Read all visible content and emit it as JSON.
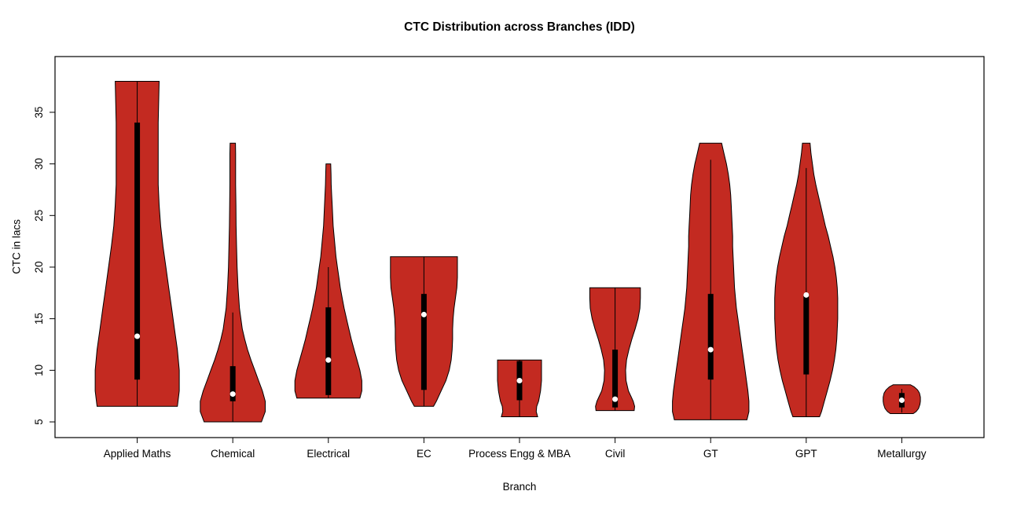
{
  "chart_data": {
    "type": "violin",
    "title": "CTC Distribution across Branches (IDD)",
    "xlabel": "Branch",
    "ylabel": "CTC in lacs",
    "ylim": [
      3.48,
      40.4
    ],
    "yticks": [
      5,
      10,
      15,
      20,
      25,
      30,
      35
    ],
    "grid": false,
    "legend": "none",
    "violin_fill": "#c32a21",
    "outline_color": "#000000",
    "box_color": "#000000",
    "median_color": "#ffffff",
    "categories": [
      "Applied Maths",
      "Chemical",
      "Electrical",
      "EC",
      "Process Engg & MBA",
      "Civil",
      "GT",
      "GPT",
      "Metallurgy"
    ],
    "series": [
      {
        "name": "Applied Maths",
        "min": 6.5,
        "max": 38,
        "q1": 9.1,
        "q3": 34,
        "median": 13.3,
        "whisker_low": 6.5,
        "whisker_high": 38,
        "shape": [
          [
            6.5,
            0.42
          ],
          [
            8,
            0.44
          ],
          [
            10,
            0.44
          ],
          [
            12,
            0.42
          ],
          [
            14,
            0.39
          ],
          [
            16,
            0.36
          ],
          [
            18,
            0.33
          ],
          [
            20,
            0.3
          ],
          [
            22,
            0.27
          ],
          [
            24,
            0.245
          ],
          [
            26,
            0.23
          ],
          [
            28,
            0.22
          ],
          [
            30,
            0.22
          ],
          [
            32,
            0.22
          ],
          [
            34,
            0.22
          ],
          [
            36,
            0.225
          ],
          [
            38,
            0.23
          ]
        ]
      },
      {
        "name": "Chemical",
        "min": 5,
        "max": 32,
        "q1": 7.0,
        "q3": 10.4,
        "median": 7.7,
        "whisker_low": 5,
        "whisker_high": 15.6,
        "shape": [
          [
            5,
            0.3
          ],
          [
            6,
            0.34
          ],
          [
            7,
            0.34
          ],
          [
            8,
            0.31
          ],
          [
            9,
            0.27
          ],
          [
            10,
            0.23
          ],
          [
            11,
            0.19
          ],
          [
            12,
            0.155
          ],
          [
            13,
            0.125
          ],
          [
            14,
            0.1
          ],
          [
            15,
            0.085
          ],
          [
            16,
            0.07
          ],
          [
            18,
            0.055
          ],
          [
            20,
            0.045
          ],
          [
            22,
            0.04
          ],
          [
            24,
            0.035
          ],
          [
            26,
            0.033
          ],
          [
            28,
            0.03
          ],
          [
            30,
            0.03
          ],
          [
            31,
            0.03
          ],
          [
            32,
            0.028
          ]
        ]
      },
      {
        "name": "Electrical",
        "min": 7.3,
        "max": 30,
        "q1": 7.6,
        "q3": 16.1,
        "median": 11,
        "whisker_low": 7.3,
        "whisker_high": 20,
        "shape": [
          [
            7.3,
            0.33
          ],
          [
            8,
            0.35
          ],
          [
            9,
            0.35
          ],
          [
            10,
            0.33
          ],
          [
            11,
            0.3
          ],
          [
            12,
            0.27
          ],
          [
            13,
            0.24
          ],
          [
            14,
            0.215
          ],
          [
            15,
            0.19
          ],
          [
            16,
            0.165
          ],
          [
            17,
            0.145
          ],
          [
            18,
            0.125
          ],
          [
            19,
            0.11
          ],
          [
            20,
            0.095
          ],
          [
            21,
            0.08
          ],
          [
            22,
            0.07
          ],
          [
            23,
            0.06
          ],
          [
            24,
            0.05
          ],
          [
            25,
            0.045
          ],
          [
            26,
            0.04
          ],
          [
            27,
            0.035
          ],
          [
            28,
            0.03
          ],
          [
            29,
            0.028
          ],
          [
            30,
            0.025
          ]
        ]
      },
      {
        "name": "EC",
        "min": 6.5,
        "max": 21,
        "q1": 8.1,
        "q3": 17.4,
        "median": 15.4,
        "whisker_low": 6.5,
        "whisker_high": 21,
        "shape": [
          [
            6.5,
            0.1
          ],
          [
            7,
            0.13
          ],
          [
            8,
            0.18
          ],
          [
            9,
            0.23
          ],
          [
            10,
            0.265
          ],
          [
            11,
            0.285
          ],
          [
            12,
            0.295
          ],
          [
            13,
            0.3
          ],
          [
            14,
            0.3
          ],
          [
            15,
            0.305
          ],
          [
            16,
            0.315
          ],
          [
            17,
            0.33
          ],
          [
            18,
            0.345
          ],
          [
            19,
            0.35
          ],
          [
            20,
            0.35
          ],
          [
            21,
            0.35
          ]
        ]
      },
      {
        "name": "Process Engg & MBA",
        "min": 5.5,
        "max": 11,
        "q1": 7.1,
        "q3": 10.9,
        "median": 9,
        "whisker_low": 5.5,
        "whisker_high": 11,
        "shape": [
          [
            5.5,
            0.19
          ],
          [
            6,
            0.175
          ],
          [
            6.5,
            0.18
          ],
          [
            7,
            0.2
          ],
          [
            8,
            0.22
          ],
          [
            9,
            0.23
          ],
          [
            10,
            0.23
          ],
          [
            11,
            0.23
          ]
        ]
      },
      {
        "name": "Civil",
        "min": 6.1,
        "max": 18,
        "q1": 6.4,
        "q3": 12,
        "median": 7.2,
        "whisker_low": 6.1,
        "whisker_high": 18,
        "shape": [
          [
            6.1,
            0.2
          ],
          [
            6.5,
            0.205
          ],
          [
            7,
            0.19
          ],
          [
            7.5,
            0.165
          ],
          [
            8,
            0.14
          ],
          [
            9,
            0.115
          ],
          [
            10,
            0.11
          ],
          [
            11,
            0.12
          ],
          [
            12,
            0.145
          ],
          [
            13,
            0.175
          ],
          [
            14,
            0.21
          ],
          [
            15,
            0.24
          ],
          [
            16,
            0.26
          ],
          [
            17,
            0.265
          ],
          [
            18,
            0.265
          ]
        ]
      },
      {
        "name": "GT",
        "min": 5.2,
        "max": 32,
        "q1": 9.1,
        "q3": 17.4,
        "median": 12,
        "whisker_low": 5.2,
        "whisker_high": 30.4,
        "shape": [
          [
            5.2,
            0.38
          ],
          [
            6,
            0.4
          ],
          [
            7,
            0.4
          ],
          [
            8,
            0.39
          ],
          [
            9,
            0.375
          ],
          [
            10,
            0.36
          ],
          [
            11,
            0.345
          ],
          [
            12,
            0.33
          ],
          [
            13,
            0.315
          ],
          [
            14,
            0.3
          ],
          [
            15,
            0.285
          ],
          [
            16,
            0.27
          ],
          [
            17,
            0.26
          ],
          [
            18,
            0.25
          ],
          [
            19,
            0.245
          ],
          [
            20,
            0.24
          ],
          [
            21,
            0.235
          ],
          [
            22,
            0.23
          ],
          [
            23,
            0.23
          ],
          [
            24,
            0.225
          ],
          [
            25,
            0.22
          ],
          [
            26,
            0.215
          ],
          [
            27,
            0.21
          ],
          [
            28,
            0.2
          ],
          [
            29,
            0.185
          ],
          [
            30,
            0.165
          ],
          [
            31,
            0.14
          ],
          [
            32,
            0.115
          ]
        ]
      },
      {
        "name": "GPT",
        "min": 5.5,
        "max": 32,
        "q1": 9.6,
        "q3": 17.4,
        "median": 17.3,
        "whisker_low": 5.5,
        "whisker_high": 29.6,
        "shape": [
          [
            5.5,
            0.14
          ],
          [
            6,
            0.16
          ],
          [
            7,
            0.19
          ],
          [
            8,
            0.22
          ],
          [
            9,
            0.25
          ],
          [
            10,
            0.275
          ],
          [
            11,
            0.295
          ],
          [
            12,
            0.31
          ],
          [
            13,
            0.32
          ],
          [
            14,
            0.325
          ],
          [
            15,
            0.33
          ],
          [
            16,
            0.33
          ],
          [
            17,
            0.33
          ],
          [
            18,
            0.325
          ],
          [
            19,
            0.315
          ],
          [
            20,
            0.3
          ],
          [
            21,
            0.28
          ],
          [
            22,
            0.255
          ],
          [
            23,
            0.23
          ],
          [
            24,
            0.2
          ],
          [
            25,
            0.175
          ],
          [
            26,
            0.15
          ],
          [
            27,
            0.125
          ],
          [
            28,
            0.1
          ],
          [
            29,
            0.08
          ],
          [
            30,
            0.065
          ],
          [
            31,
            0.05
          ],
          [
            32,
            0.04
          ]
        ]
      },
      {
        "name": "Metallurgy",
        "min": 5.8,
        "max": 8.6,
        "q1": 6.4,
        "q3": 7.8,
        "median": 7.1,
        "whisker_low": 5.9,
        "whisker_high": 8.2,
        "shape": [
          [
            5.8,
            0.12
          ],
          [
            6,
            0.15
          ],
          [
            6.3,
            0.175
          ],
          [
            6.7,
            0.19
          ],
          [
            7,
            0.195
          ],
          [
            7.4,
            0.195
          ],
          [
            7.8,
            0.185
          ],
          [
            8.1,
            0.165
          ],
          [
            8.4,
            0.13
          ],
          [
            8.6,
            0.09
          ]
        ]
      }
    ]
  }
}
